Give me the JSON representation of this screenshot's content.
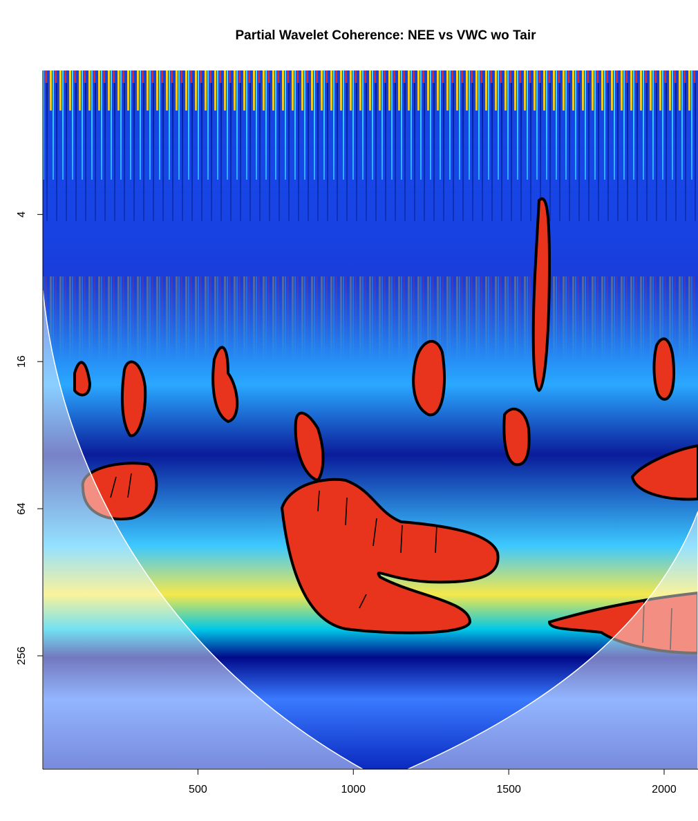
{
  "chart_data": {
    "type": "heatmap",
    "title": "Partial Wavelet Coherence: NEE vs VWC wo Tair",
    "xlim": [
      1,
      2109
    ],
    "xticks": [
      500,
      1000,
      1500,
      2000
    ],
    "ylim": [
      1.03,
      745
    ],
    "yticks": [
      4,
      16,
      64,
      256
    ],
    "log_y": true,
    "y_reversed": true
  }
}
